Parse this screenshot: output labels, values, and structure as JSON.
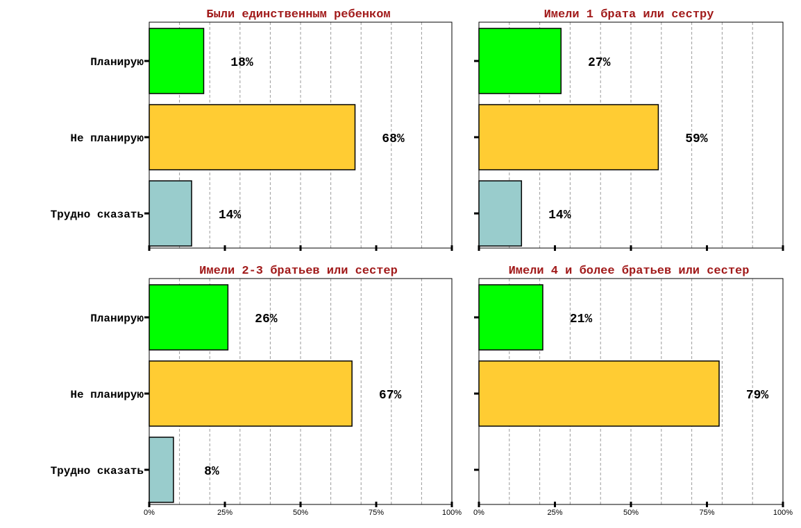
{
  "chart_data": [
    {
      "type": "bar",
      "orientation": "horizontal",
      "title": "Были единственным ребенком",
      "categories": [
        "Планирую",
        "Не планирую",
        "Трудно сказать"
      ],
      "values": [
        18,
        68,
        14
      ],
      "value_labels": [
        "18%",
        "68%",
        "14%"
      ],
      "colors": [
        "#00ff00",
        "#ffcc33",
        "#99cccc"
      ],
      "xlim": [
        0,
        100
      ],
      "xticks": [
        "0%",
        "25%",
        "50%",
        "75%",
        "100%"
      ],
      "grid": true
    },
    {
      "type": "bar",
      "orientation": "horizontal",
      "title": "Имели 1 брата или сестру",
      "categories": [
        "Планирую",
        "Не планирую",
        "Трудно сказать"
      ],
      "values": [
        27,
        59,
        14
      ],
      "value_labels": [
        "27%",
        "59%",
        "14%"
      ],
      "colors": [
        "#00ff00",
        "#ffcc33",
        "#99cccc"
      ],
      "xlim": [
        0,
        100
      ],
      "xticks": [
        "0%",
        "25%",
        "50%",
        "75%",
        "100%"
      ],
      "grid": true
    },
    {
      "type": "bar",
      "orientation": "horizontal",
      "title": "Имели 2-3 братьев или сестер",
      "categories": [
        "Планирую",
        "Не планирую",
        "Трудно сказать"
      ],
      "values": [
        26,
        67,
        8
      ],
      "value_labels": [
        "26%",
        "67%",
        "8%"
      ],
      "colors": [
        "#00ff00",
        "#ffcc33",
        "#99cccc"
      ],
      "xlim": [
        0,
        100
      ],
      "xticks": [
        "0%",
        "25%",
        "50%",
        "75%",
        "100%"
      ],
      "grid": true
    },
    {
      "type": "bar",
      "orientation": "horizontal",
      "title": "Имели 4 и более братьев или сестер",
      "categories": [
        "Планирую",
        "Не планирую",
        "Трудно сказать"
      ],
      "values": [
        21,
        79,
        0
      ],
      "value_labels": [
        "21%",
        "79%",
        ""
      ],
      "colors": [
        "#00ff00",
        "#ffcc33",
        "#99cccc"
      ],
      "xlim": [
        0,
        100
      ],
      "xticks": [
        "0%",
        "25%",
        "50%",
        "75%",
        "100%"
      ],
      "grid": true
    }
  ]
}
